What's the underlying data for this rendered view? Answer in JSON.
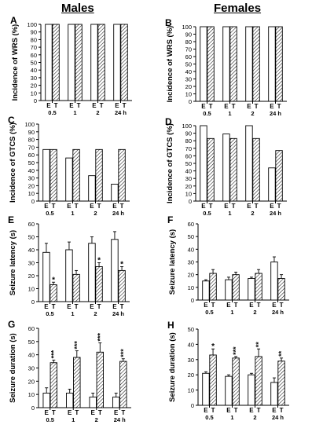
{
  "headers": {
    "males": "Males",
    "females": "Females"
  },
  "colors": {
    "E_fill": "#ffffff",
    "T_hatch": "#000000",
    "axis": "#000000"
  },
  "chart_data": [
    {
      "id": "A",
      "type": "bar",
      "panel_label": "A",
      "ylabel": "Incidence of WRS (%)",
      "ylim": [
        0,
        100
      ],
      "yticks": [
        0,
        10,
        20,
        30,
        40,
        50,
        60,
        70,
        80,
        90,
        100
      ],
      "categories": [
        "0.5",
        "1",
        "2",
        "24 h"
      ],
      "bar_labels": [
        "E",
        "T"
      ],
      "series": [
        {
          "name": "E",
          "values": [
            100,
            100,
            100,
            100
          ],
          "err": [
            0,
            0,
            0,
            0
          ]
        },
        {
          "name": "T",
          "values": [
            100,
            100,
            100,
            100
          ],
          "err": [
            0,
            0,
            0,
            0
          ]
        }
      ],
      "stars": []
    },
    {
      "id": "B",
      "type": "bar",
      "panel_label": "B",
      "ylabel": "Incidence of WRS (%)",
      "ylim": [
        0,
        100
      ],
      "yticks": [
        0,
        10,
        20,
        30,
        40,
        50,
        60,
        70,
        80,
        90,
        100
      ],
      "categories": [
        "0.5",
        "1",
        "2",
        "24 h"
      ],
      "bar_labels": [
        "E",
        "T"
      ],
      "series": [
        {
          "name": "E",
          "values": [
            100,
            100,
            100,
            100
          ],
          "err": [
            0,
            0,
            0,
            0
          ]
        },
        {
          "name": "T",
          "values": [
            100,
            100,
            100,
            100
          ],
          "err": [
            0,
            0,
            0,
            0
          ]
        }
      ],
      "stars": []
    },
    {
      "id": "C",
      "type": "bar",
      "panel_label": "C",
      "ylabel": "Incidence of GTCS (%)",
      "ylim": [
        0,
        100
      ],
      "yticks": [
        0,
        10,
        20,
        30,
        40,
        50,
        60,
        70,
        80,
        90,
        100
      ],
      "categories": [
        "0.5",
        "1",
        "2",
        "24 h"
      ],
      "bar_labels": [
        "E",
        "T"
      ],
      "series": [
        {
          "name": "E",
          "values": [
            67,
            56,
            33,
            22
          ],
          "err": [
            0,
            0,
            0,
            0
          ]
        },
        {
          "name": "T",
          "values": [
            67,
            67,
            67,
            67
          ],
          "err": [
            0,
            0,
            0,
            0
          ]
        }
      ],
      "stars": []
    },
    {
      "id": "D",
      "type": "bar",
      "panel_label": "D",
      "ylabel": "Incidence of GTCS (%)",
      "ylim": [
        0,
        100
      ],
      "yticks": [
        0,
        10,
        20,
        30,
        40,
        50,
        60,
        70,
        80,
        90,
        100
      ],
      "categories": [
        "0.5",
        "1",
        "2",
        "24 h"
      ],
      "bar_labels": [
        "E",
        "T"
      ],
      "series": [
        {
          "name": "E",
          "values": [
            100,
            89,
            100,
            44
          ],
          "err": [
            0,
            0,
            0,
            0
          ]
        },
        {
          "name": "T",
          "values": [
            83,
            83,
            83,
            67
          ],
          "err": [
            0,
            0,
            0,
            0
          ]
        }
      ],
      "stars": []
    },
    {
      "id": "E",
      "type": "bar",
      "panel_label": "E",
      "ylabel": "Seizure latency (s)",
      "ylim": [
        0,
        60
      ],
      "yticks": [
        0,
        10,
        20,
        30,
        40,
        50,
        60
      ],
      "categories": [
        "0.5",
        "1",
        "2",
        "24 h"
      ],
      "bar_labels": [
        "E",
        "T"
      ],
      "series": [
        {
          "name": "E",
          "values": [
            38,
            40,
            45,
            48
          ],
          "err": [
            7,
            6,
            5,
            6
          ]
        },
        {
          "name": "T",
          "values": [
            13,
            21,
            27,
            24
          ],
          "err": [
            2,
            3,
            3,
            3
          ]
        }
      ],
      "stars": [
        {
          "group": 0,
          "bar": 1,
          "text": "*"
        },
        {
          "group": 2,
          "bar": 1,
          "text": "*"
        },
        {
          "group": 3,
          "bar": 1,
          "text": "*"
        }
      ]
    },
    {
      "id": "F",
      "type": "bar",
      "panel_label": "F",
      "ylabel": "Seizure latency (s)",
      "ylim": [
        0,
        60
      ],
      "yticks": [
        0,
        10,
        20,
        30,
        40,
        50,
        60
      ],
      "categories": [
        "0.5",
        "1",
        "2",
        "24 h"
      ],
      "bar_labels": [
        "E",
        "T"
      ],
      "series": [
        {
          "name": "E",
          "values": [
            15,
            16,
            17,
            30
          ],
          "err": [
            1,
            2,
            1,
            4
          ]
        },
        {
          "name": "T",
          "values": [
            21,
            20,
            21,
            17
          ],
          "err": [
            3,
            2,
            3,
            3
          ]
        }
      ],
      "stars": []
    },
    {
      "id": "G",
      "type": "bar",
      "panel_label": "G",
      "ylabel": "Seizure duration (s)",
      "ylim": [
        0,
        60
      ],
      "yticks": [
        0,
        10,
        20,
        30,
        40,
        50,
        60
      ],
      "categories": [
        "0.5",
        "1",
        "2",
        "24 h"
      ],
      "bar_labels": [
        "E",
        "T"
      ],
      "series": [
        {
          "name": "E",
          "values": [
            11,
            11,
            8,
            8
          ],
          "err": [
            4,
            3,
            3,
            3
          ]
        },
        {
          "name": "T",
          "values": [
            34,
            38,
            42,
            35
          ],
          "err": [
            2,
            5,
            7,
            2
          ]
        }
      ],
      "stars": [
        {
          "group": 0,
          "bar": 1,
          "text": "***"
        },
        {
          "group": 1,
          "bar": 1,
          "text": "***"
        },
        {
          "group": 2,
          "bar": 1,
          "text": "***"
        },
        {
          "group": 3,
          "bar": 1,
          "text": "***"
        }
      ]
    },
    {
      "id": "H",
      "type": "bar",
      "panel_label": "H",
      "ylabel": "Seizure duration (s)",
      "ylim": [
        0,
        50
      ],
      "yticks": [
        0,
        10,
        20,
        30,
        40,
        50
      ],
      "categories": [
        "0.5",
        "1",
        "2",
        "24 h"
      ],
      "bar_labels": [
        "E",
        "T"
      ],
      "series": [
        {
          "name": "E",
          "values": [
            21,
            19,
            20,
            15
          ],
          "err": [
            1,
            1,
            1,
            3
          ]
        },
        {
          "name": "T",
          "values": [
            33,
            31,
            32,
            29
          ],
          "err": [
            4,
            1,
            5,
            2
          ]
        }
      ],
      "stars": [
        {
          "group": 0,
          "bar": 1,
          "text": "*"
        },
        {
          "group": 1,
          "bar": 1,
          "text": "***"
        },
        {
          "group": 2,
          "bar": 1,
          "text": "**"
        },
        {
          "group": 3,
          "bar": 1,
          "text": "**"
        }
      ]
    }
  ]
}
